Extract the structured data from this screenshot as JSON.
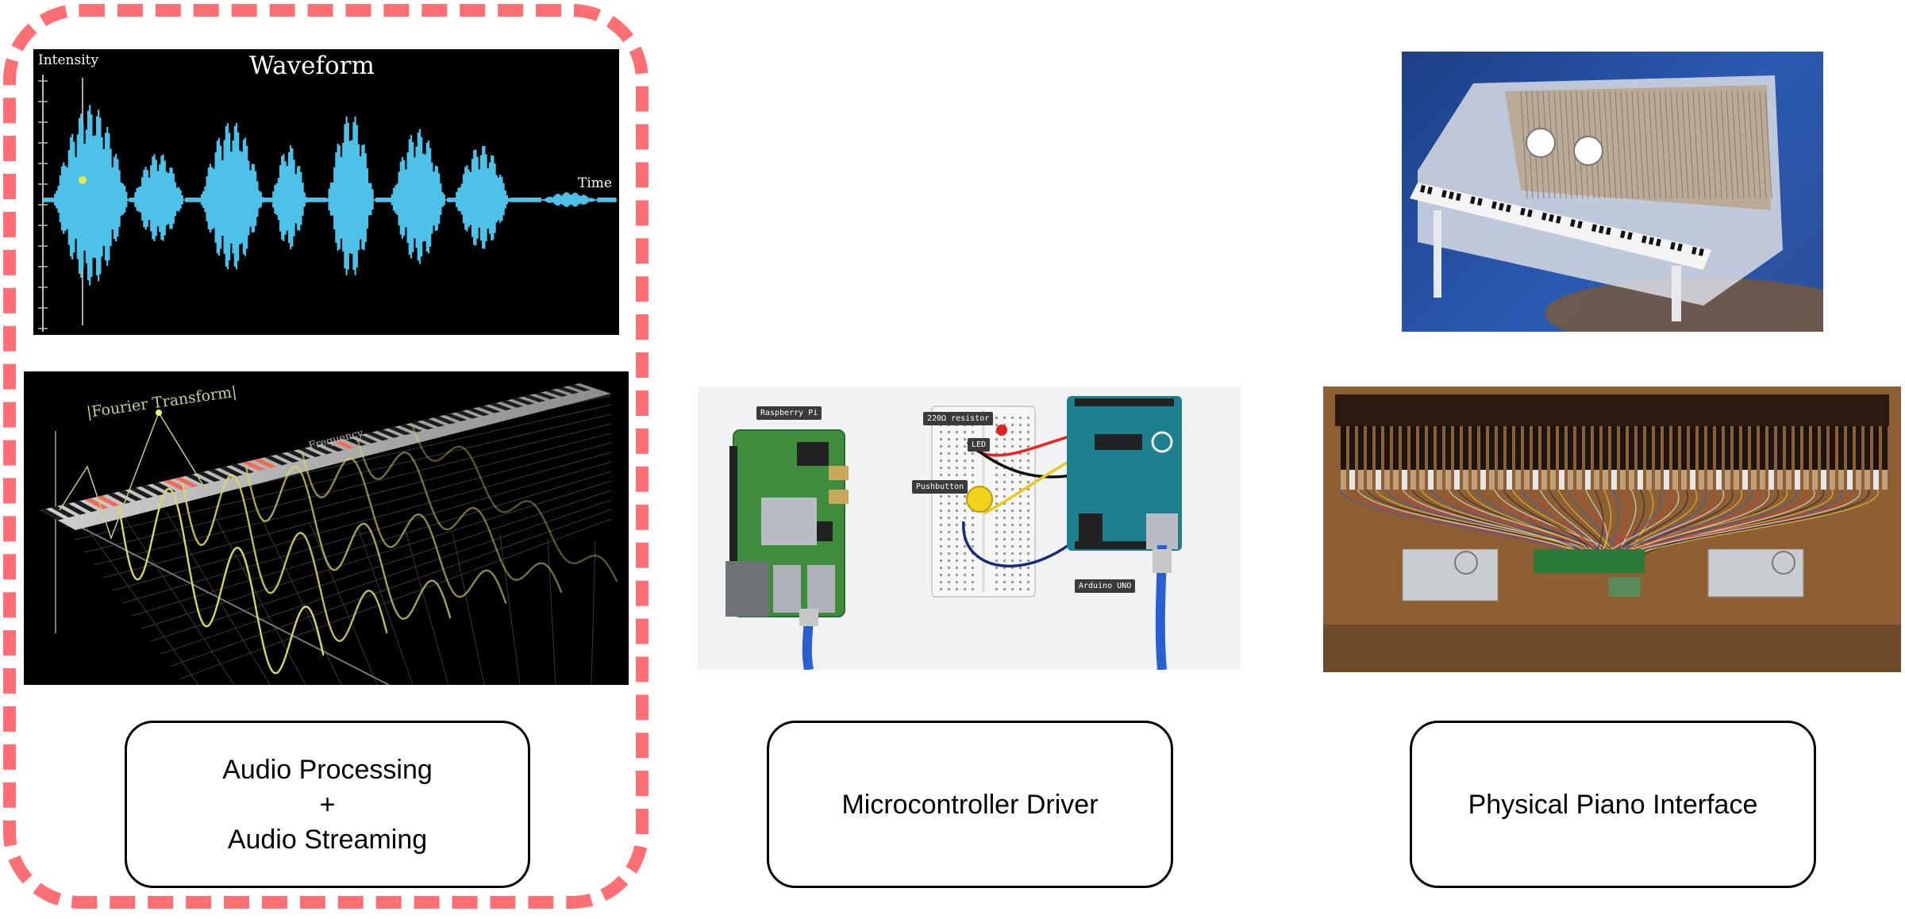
{
  "columns": [
    {
      "id": "audio",
      "label_lines": [
        "Audio Processing",
        "+",
        "Audio Streaming"
      ],
      "highlighted": true,
      "waveform": {
        "title": "Waveform",
        "y_axis_label": "Intensity",
        "x_axis_label": "Time"
      },
      "fourier": {
        "label": "|Fourier Transform|",
        "axis_label": "Frequency"
      }
    },
    {
      "id": "microcontroller",
      "label_lines": [
        "Microcontroller Driver"
      ],
      "tags": {
        "raspberry": "Raspberry Pi",
        "resistor": "220Ω resistor",
        "led": "LED",
        "pushbutton": "Pushbutton",
        "arduino": "Arduino UNO"
      }
    },
    {
      "id": "piano",
      "label_lines": [
        "Physical Piano Interface"
      ]
    }
  ],
  "colors": {
    "highlight_dash": "#ff6f73",
    "waveform": "#4ec1e8",
    "fourier_curve": "#d8d86a",
    "key_highlight": "#f06a5a"
  }
}
